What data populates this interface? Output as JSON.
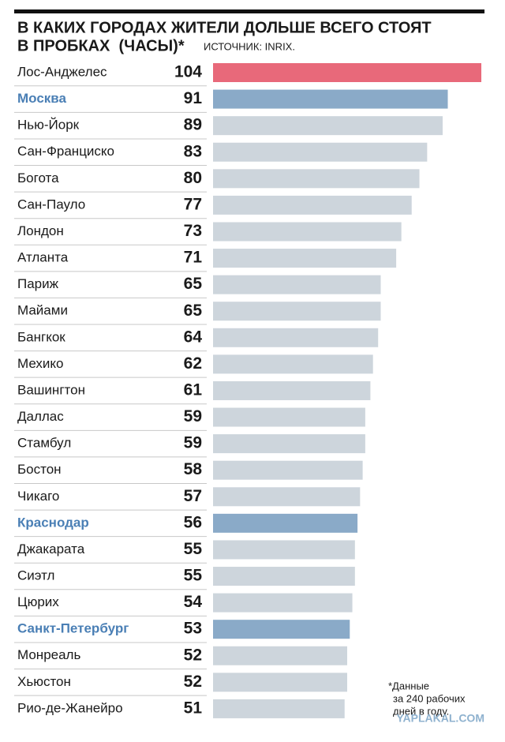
{
  "chart_data": {
    "type": "bar",
    "orientation": "horizontal",
    "title": [
      "В КАКИХ ГОРОДАХ ЖИТЕЛИ ДОЛЬШЕ ВСЕГО СТОЯТ",
      "В ПРОБКАХ  (ЧАСЫ)*"
    ],
    "source": "ИСТОЧНИК: INRIX.",
    "categories": [
      "Лос-Анджелес",
      "Москва",
      "Нью-Йорк",
      "Сан-Франциско",
      "Богота",
      "Сан-Пауло",
      "Лондон",
      "Атланта",
      "Париж",
      "Майами",
      "Бангкок",
      "Мехико",
      "Вашингтон",
      "Даллас",
      "Стамбул",
      "Бостон",
      "Чикаго",
      "Краснодар",
      "Джакарата",
      "Сиэтл",
      "Цюрих",
      "Санкт-Петербург",
      "Монреаль",
      "Хьюстон",
      "Рио-де-Жанейро"
    ],
    "values": [
      104,
      91,
      89,
      83,
      80,
      77,
      73,
      71,
      65,
      65,
      64,
      62,
      61,
      59,
      59,
      58,
      57,
      56,
      55,
      55,
      54,
      53,
      52,
      52,
      51
    ],
    "colors": [
      "#e8697a",
      "#8aaac8",
      "#cdd5dc",
      "#cdd5dc",
      "#cdd5dc",
      "#cdd5dc",
      "#cdd5dc",
      "#cdd5dc",
      "#cdd5dc",
      "#cdd5dc",
      "#cdd5dc",
      "#cdd5dc",
      "#cdd5dc",
      "#cdd5dc",
      "#cdd5dc",
      "#cdd5dc",
      "#cdd5dc",
      "#8aaac8",
      "#cdd5dc",
      "#cdd5dc",
      "#cdd5dc",
      "#8aaac8",
      "#cdd5dc",
      "#cdd5dc",
      "#cdd5dc"
    ],
    "highlight_color": "#8aaac8",
    "highlight_label_color": "#4a7fb5",
    "footnote": [
      "*Данные",
      "за 240 рабочих",
      "дней в году."
    ],
    "watermark": "YAPLAKAL.COM"
  }
}
